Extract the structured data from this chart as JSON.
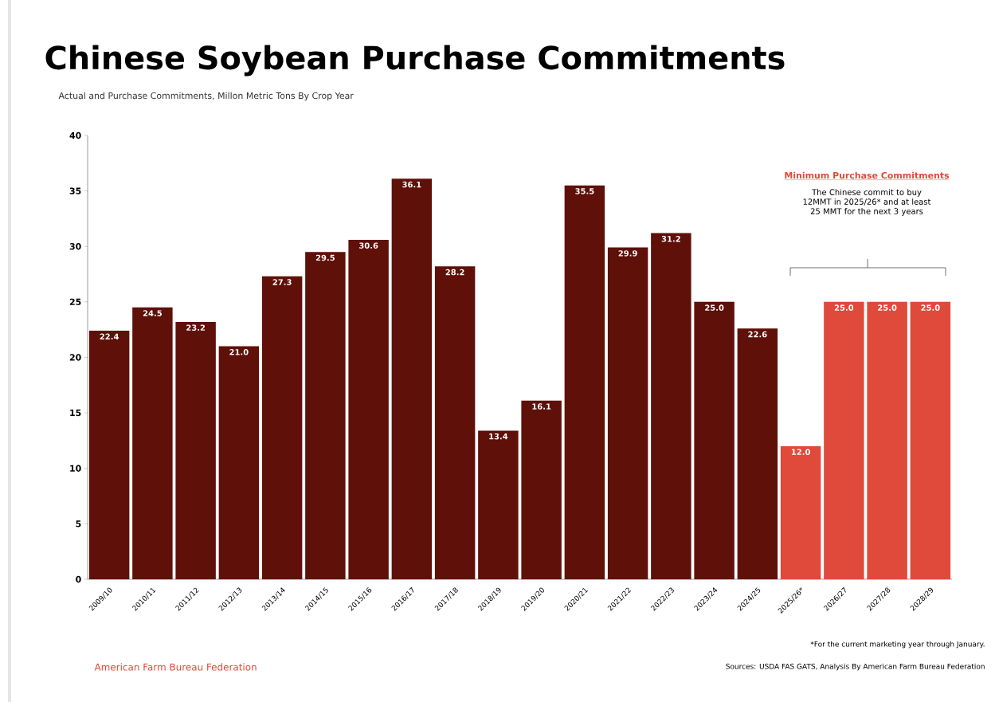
{
  "chart_data": {
    "type": "bar",
    "title": "Chinese Soybean Purchase Commitments",
    "subtitle": "Actual and Purchase Commitments, Millon Metric Tons By Crop Year",
    "categories": [
      "2009/10",
      "2010/11",
      "2011/12",
      "2012/13",
      "2013/14",
      "2014/15",
      "2015/16",
      "2016/17",
      "2017/18",
      "2018/19",
      "2019/20",
      "2020/21",
      "2021/22",
      "2022/23",
      "2023/24",
      "2024/25",
      "2025/26*",
      "2026/27",
      "2027/28",
      "2028/29"
    ],
    "values": [
      22.4,
      24.5,
      23.2,
      21.0,
      27.3,
      29.5,
      30.6,
      36.1,
      28.2,
      13.4,
      16.1,
      35.5,
      29.9,
      31.2,
      25.0,
      22.6,
      12.0,
      25.0,
      25.0,
      25.0
    ],
    "value_labels": [
      "22.4",
      "24.5",
      "23.2",
      "21.0",
      "27.3",
      "29.5",
      "30.6",
      "36.1",
      "28.2",
      "13.4",
      "16.1",
      "35.5",
      "29.9",
      "31.2",
      "25.0",
      "22.6",
      "12.0",
      "25.0",
      "25.0",
      "25.0"
    ],
    "colors": [
      "#5e1009",
      "#5e1009",
      "#5e1009",
      "#5e1009",
      "#5e1009",
      "#5e1009",
      "#5e1009",
      "#5e1009",
      "#5e1009",
      "#5e1009",
      "#5e1009",
      "#5e1009",
      "#5e1009",
      "#5e1009",
      "#5e1009",
      "#5e1009",
      "#e04a3a",
      "#e04a3a",
      "#e04a3a",
      "#e04a3a"
    ],
    "ylim": [
      0,
      40
    ],
    "yticks": [
      0,
      5,
      10,
      15,
      20,
      25,
      30,
      35,
      40
    ],
    "grid": false,
    "annotations": [
      "Minimum Purchase Commitments",
      "The Chinese commit to buy 12MMT in 2025/26* and at least 25 MMT for the next 3 years",
      "*For the current marketing year through January.",
      "Sources: USDA FAS GATS, Analysis By American Farm Bureau Federation",
      "American Farm Bureau Federation"
    ]
  }
}
